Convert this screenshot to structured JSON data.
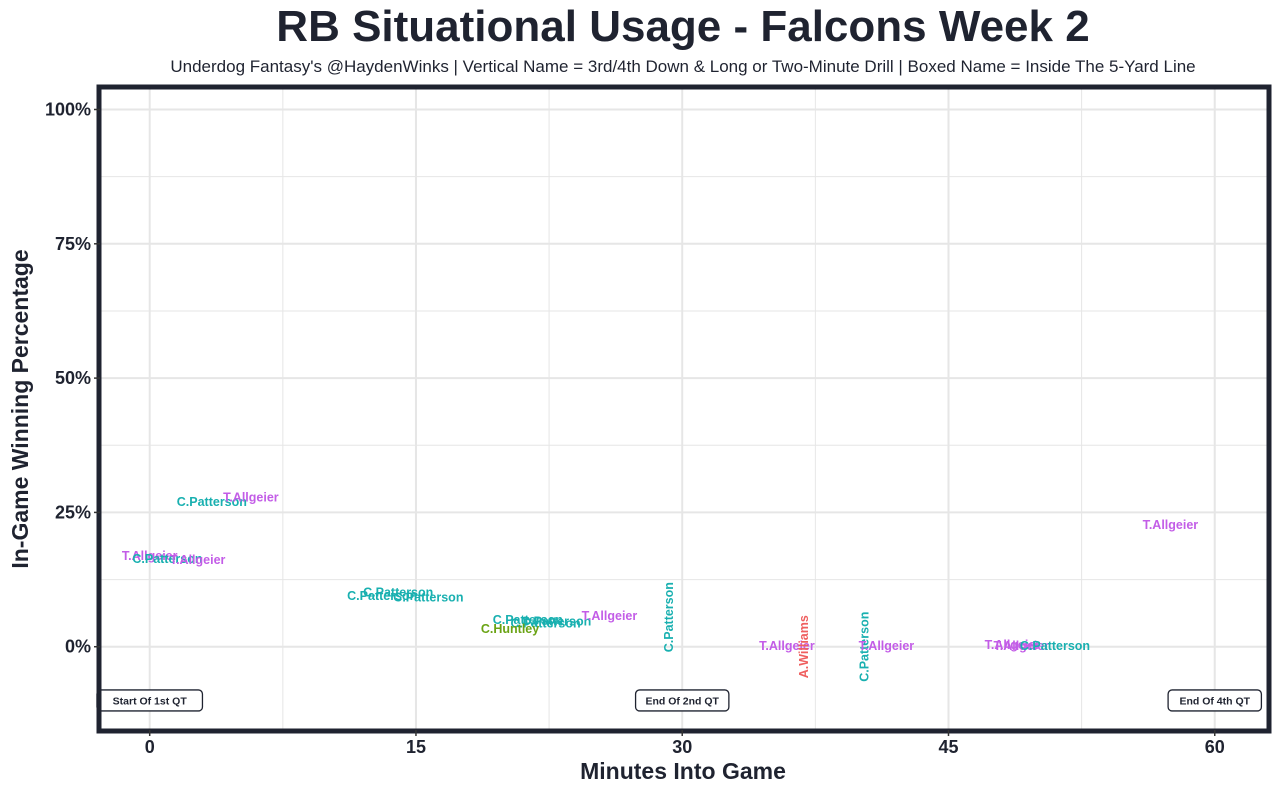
{
  "header": {
    "title": "RB Situational Usage - Falcons Week 2",
    "subtitle": "Underdog Fantasy's @HaydenWinks | Vertical Name = 3rd/4th Down & Long or Two-Minute Drill | Boxed Name = Inside The 5-Yard Line"
  },
  "colors": {
    "T.Allgeier": "#c35de7",
    "C.Patterson": "#19b0b0",
    "C.Huntley": "#6aa314",
    "A.Williams": "#ef5f5f",
    "frame": "#1f2330",
    "grid": "#e6e6e6"
  },
  "chart_data": {
    "type": "scatter",
    "title": "RB Situational Usage - Falcons Week 2",
    "xlabel": "Minutes Into Game",
    "ylabel": "In-Game Winning Percentage",
    "xlim": [
      -2.8,
      63
    ],
    "ylim": [
      -15.5,
      104
    ],
    "xticks": [
      0,
      15,
      30,
      45,
      60
    ],
    "xtick_labels": [
      "0",
      "15",
      "30",
      "45",
      "60"
    ],
    "yticks": [
      0,
      25,
      50,
      75,
      100
    ],
    "ytick_labels": [
      "0%",
      "25%",
      "50%",
      "75%",
      "100%"
    ],
    "grid": true,
    "points": [
      {
        "x": 0.0,
        "y": 16.8,
        "label": "T.Allgeier",
        "vertical": false
      },
      {
        "x": 1.0,
        "y": 16.2,
        "label": "C.Patterson",
        "vertical": false
      },
      {
        "x": 2.7,
        "y": 16.0,
        "label": "T.Allgeier",
        "vertical": false
      },
      {
        "x": 3.5,
        "y": 26.8,
        "label": "C.Patterson",
        "vertical": false
      },
      {
        "x": 5.7,
        "y": 27.6,
        "label": "T.Allgeier",
        "vertical": false
      },
      {
        "x": 14.0,
        "y": 10.0,
        "label": "C.Patterson",
        "vertical": false
      },
      {
        "x": 13.1,
        "y": 9.3,
        "label": "C.Patterson",
        "vertical": false
      },
      {
        "x": 15.7,
        "y": 9.0,
        "label": "C.Patterson",
        "vertical": false
      },
      {
        "x": 21.3,
        "y": 4.8,
        "label": "C.Patterson",
        "vertical": false
      },
      {
        "x": 22.9,
        "y": 4.6,
        "label": "C.Patterson",
        "vertical": false
      },
      {
        "x": 22.3,
        "y": 4.2,
        "label": "C.Patterson",
        "vertical": false
      },
      {
        "x": 25.9,
        "y": 5.6,
        "label": "T.Allgeier",
        "vertical": false
      },
      {
        "x": 20.3,
        "y": 3.2,
        "label": "C.Huntley",
        "vertical": false
      },
      {
        "x": 29.3,
        "y": 5.5,
        "label": "C.Patterson",
        "vertical": true
      },
      {
        "x": 35.9,
        "y": 0.0,
        "label": "T.Allgeier",
        "vertical": false
      },
      {
        "x": 36.9,
        "y": 0.0,
        "label": "A.Williams",
        "vertical": true
      },
      {
        "x": 40.3,
        "y": 0.0,
        "label": "C.Patterson",
        "vertical": true
      },
      {
        "x": 41.5,
        "y": 0.0,
        "label": "T.Allgeier",
        "vertical": false
      },
      {
        "x": 48.6,
        "y": 0.2,
        "label": "T.Allgeier",
        "vertical": false
      },
      {
        "x": 49.1,
        "y": 0.0,
        "label": "T.Allgeier",
        "vertical": false
      },
      {
        "x": 51.0,
        "y": 0.0,
        "label": "C.Patterson",
        "vertical": false
      },
      {
        "x": 57.5,
        "y": 22.5,
        "label": "T.Allgeier",
        "vertical": false
      }
    ],
    "annotations": [
      {
        "x": 0,
        "y": -10,
        "label": "Start Of 1st QT"
      },
      {
        "x": 30,
        "y": -10,
        "label": "End Of 2nd QT"
      },
      {
        "x": 60,
        "y": -10,
        "label": "End Of 4th QT"
      }
    ]
  }
}
